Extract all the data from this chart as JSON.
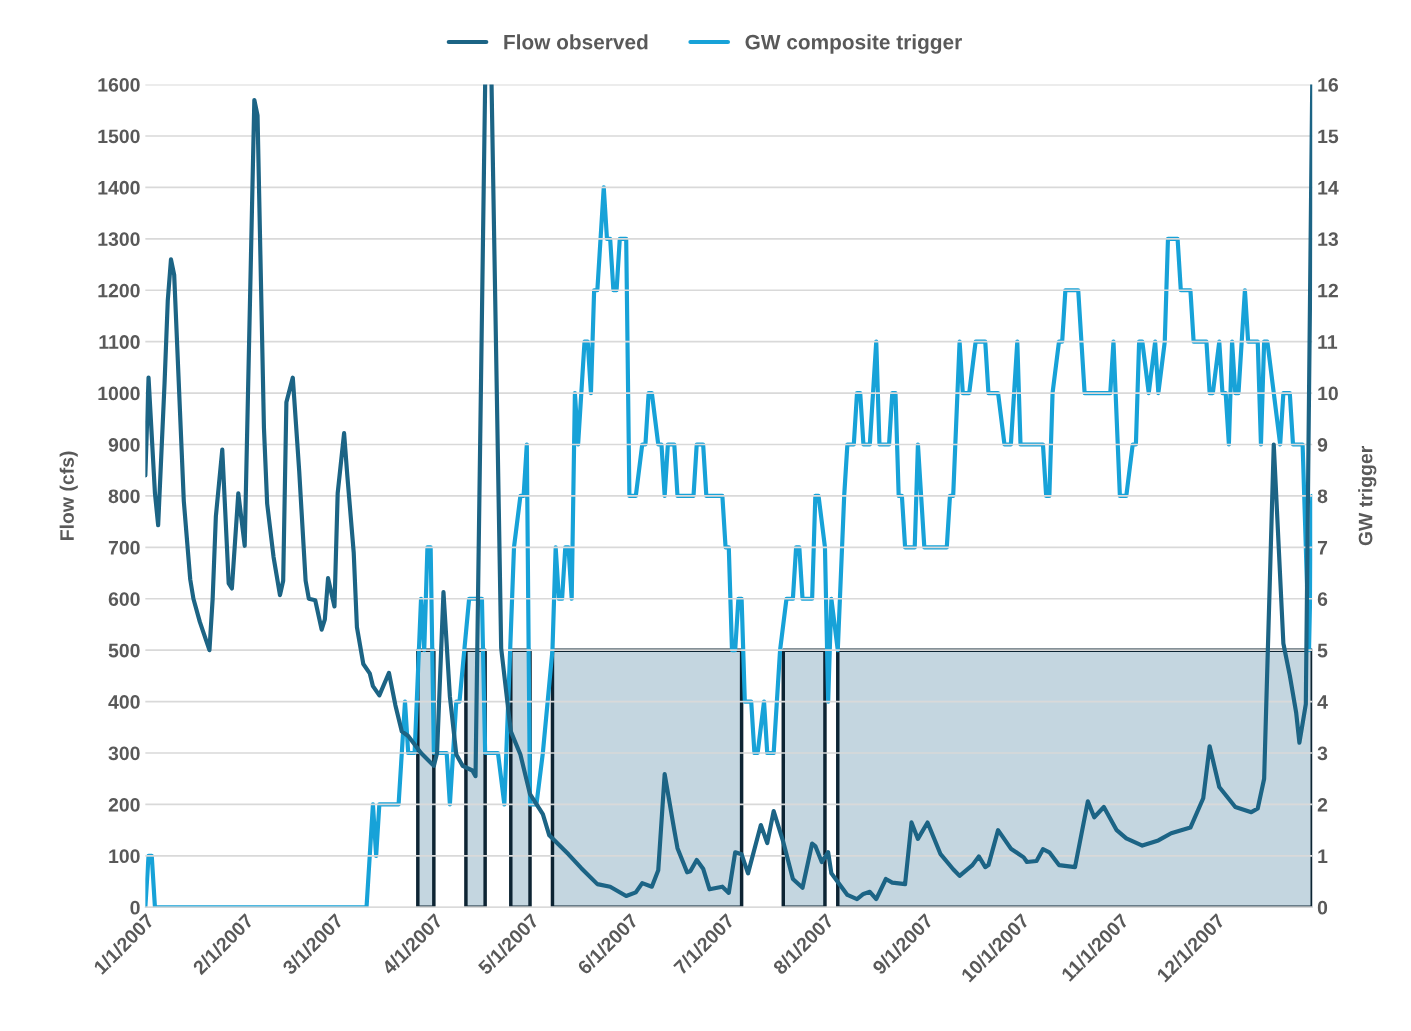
{
  "chart_data": {
    "type": "line",
    "ylabel": "Flow (cfs)",
    "y2label": "GW trigger",
    "xlim": [
      "2007-01-01",
      "2007-12-31"
    ],
    "xticks": [
      {
        "value": "2007-01-01",
        "label": "1/1/2007"
      },
      {
        "value": "2007-02-01",
        "label": "2/1/2007"
      },
      {
        "value": "2007-03-01",
        "label": "3/1/2007"
      },
      {
        "value": "2007-04-01",
        "label": "4/1/2007"
      },
      {
        "value": "2007-05-01",
        "label": "5/1/2007"
      },
      {
        "value": "2007-06-01",
        "label": "6/1/2007"
      },
      {
        "value": "2007-07-01",
        "label": "7/1/2007"
      },
      {
        "value": "2007-08-01",
        "label": "8/1/2007"
      },
      {
        "value": "2007-09-01",
        "label": "9/1/2007"
      },
      {
        "value": "2007-10-01",
        "label": "10/1/2007"
      },
      {
        "value": "2007-11-01",
        "label": "11/1/2007"
      },
      {
        "value": "2007-12-01",
        "label": "12/1/2007"
      }
    ],
    "ylim": [
      0,
      1600
    ],
    "yticks": [
      0,
      100,
      200,
      300,
      400,
      500,
      600,
      700,
      800,
      900,
      1000,
      1100,
      1200,
      1300,
      1400,
      1500,
      1600
    ],
    "y2lim": [
      0,
      16
    ],
    "y2ticks": [
      0,
      1,
      2,
      3,
      4,
      5,
      6,
      7,
      8,
      9,
      10,
      11,
      12,
      13,
      14,
      15,
      16
    ],
    "grid": "y",
    "legend": "top",
    "series": [
      {
        "type": "area",
        "axis": "y2",
        "color": "#c4d6e0",
        "x": [
          "2007-03-27",
          "2007-04-01",
          "2007-04-06",
          "2007-04-11",
          "2007-04-17",
          "2007-04-21",
          "2007-04-25",
          "2007-05-01",
          "2007-05-04",
          "2007-05-08",
          "2007-07-06",
          "2007-07-12",
          "2007-07-19",
          "2007-08-01",
          "2007-08-03",
          "2007-08-05",
          "2007-12-31"
        ],
        "values": [
          5,
          5,
          null,
          5,
          5,
          null,
          5,
          5,
          null,
          5,
          5,
          null,
          5,
          5,
          null,
          5,
          5
        ]
      },
      {
        "axis": "y2",
        "name": "GW composite trigger",
        "color": "#17a2d8",
        "x": [
          "2007-01-01",
          "2007-01-02",
          "2007-01-03",
          "2007-01-04",
          "2007-03-11",
          "2007-03-13",
          "2007-03-14",
          "2007-03-15",
          "2007-03-21",
          "2007-03-23",
          "2007-03-24",
          "2007-03-26",
          "2007-03-28",
          "2007-03-29",
          "2007-03-30",
          "2007-03-31",
          "2007-04-01",
          "2007-04-05",
          "2007-04-06",
          "2007-04-08",
          "2007-04-09",
          "2007-04-12",
          "2007-04-16",
          "2007-04-17",
          "2007-04-21",
          "2007-04-23",
          "2007-04-26",
          "2007-04-28",
          "2007-04-29",
          "2007-04-30",
          "2007-05-01",
          "2007-05-03",
          "2007-05-05",
          "2007-05-08",
          "2007-05-09",
          "2007-05-10",
          "2007-05-11",
          "2007-05-12",
          "2007-05-13",
          "2007-05-14",
          "2007-05-15",
          "2007-05-16",
          "2007-05-18",
          "2007-05-19",
          "2007-05-20",
          "2007-05-21",
          "2007-05-22",
          "2007-05-24",
          "2007-05-25",
          "2007-05-26",
          "2007-05-27",
          "2007-05-28",
          "2007-05-29",
          "2007-05-31",
          "2007-06-01",
          "2007-06-03",
          "2007-06-05",
          "2007-06-06",
          "2007-06-07",
          "2007-06-08",
          "2007-06-10",
          "2007-06-11",
          "2007-06-12",
          "2007-06-13",
          "2007-06-15",
          "2007-06-16",
          "2007-06-21",
          "2007-06-22",
          "2007-06-24",
          "2007-06-25",
          "2007-06-30",
          "2007-07-01",
          "2007-07-02",
          "2007-07-03",
          "2007-07-04",
          "2007-07-05",
          "2007-07-06",
          "2007-07-07",
          "2007-07-09",
          "2007-07-10",
          "2007-07-11",
          "2007-07-13",
          "2007-07-14",
          "2007-07-16",
          "2007-07-18",
          "2007-07-20",
          "2007-07-22",
          "2007-07-23",
          "2007-07-24",
          "2007-07-25",
          "2007-07-28",
          "2007-07-29",
          "2007-07-30",
          "2007-08-01",
          "2007-08-02",
          "2007-08-03",
          "2007-08-05",
          "2007-08-07",
          "2007-08-08",
          "2007-08-10",
          "2007-08-11",
          "2007-08-12",
          "2007-08-13",
          "2007-08-15",
          "2007-08-17",
          "2007-08-18",
          "2007-08-21",
          "2007-08-22",
          "2007-08-23",
          "2007-08-24",
          "2007-08-25",
          "2007-08-26",
          "2007-08-29",
          "2007-08-30",
          "2007-09-01",
          "2007-09-08",
          "2007-09-09",
          "2007-09-10",
          "2007-09-12",
          "2007-09-13",
          "2007-09-15",
          "2007-09-17",
          "2007-09-20",
          "2007-09-21",
          "2007-09-24",
          "2007-09-26",
          "2007-09-28",
          "2007-09-30",
          "2007-10-01",
          "2007-10-08",
          "2007-10-09",
          "2007-10-10",
          "2007-10-11",
          "2007-10-13",
          "2007-10-14",
          "2007-10-15",
          "2007-10-19",
          "2007-10-21",
          "2007-10-29",
          "2007-10-30",
          "2007-11-01",
          "2007-11-03",
          "2007-11-05",
          "2007-11-06",
          "2007-11-07",
          "2007-11-08",
          "2007-11-10",
          "2007-11-12",
          "2007-11-13",
          "2007-11-15",
          "2007-11-16",
          "2007-11-19",
          "2007-11-20",
          "2007-11-23",
          "2007-11-24",
          "2007-11-28",
          "2007-11-29",
          "2007-11-30",
          "2007-12-02",
          "2007-12-03",
          "2007-12-04",
          "2007-12-05",
          "2007-12-06",
          "2007-12-07",
          "2007-12-08",
          "2007-12-10",
          "2007-12-11",
          "2007-12-14",
          "2007-12-15",
          "2007-12-16",
          "2007-12-17",
          "2007-12-19",
          "2007-12-21",
          "2007-12-22",
          "2007-12-24",
          "2007-12-25",
          "2007-12-28",
          "2007-12-30",
          "2007-12-31"
        ],
        "values": [
          0,
          1,
          1,
          0,
          0,
          2,
          1,
          2,
          2,
          4,
          3,
          3,
          6,
          5,
          7,
          7,
          3,
          3,
          2,
          4,
          4,
          6,
          6,
          3,
          3,
          2,
          7,
          8,
          8,
          9,
          2,
          2,
          3,
          5,
          7,
          6,
          6,
          7,
          7,
          6,
          10,
          9,
          11,
          11,
          10,
          12,
          12,
          14,
          13,
          13,
          12,
          12,
          13,
          13,
          8,
          8,
          9,
          9,
          10,
          10,
          9,
          9,
          8,
          9,
          9,
          8,
          8,
          9,
          9,
          8,
          8,
          7,
          7,
          5,
          5,
          6,
          6,
          4,
          4,
          3,
          3,
          4,
          3,
          3,
          5,
          6,
          6,
          7,
          7,
          6,
          6,
          8,
          8,
          7,
          4,
          6,
          5,
          8,
          9,
          9,
          10,
          10,
          9,
          9,
          11,
          9,
          9,
          10,
          10,
          8,
          8,
          7,
          7,
          9,
          7,
          7,
          8,
          8,
          11,
          10,
          10,
          11,
          11,
          10,
          10,
          9,
          9,
          11,
          9,
          9,
          8,
          8,
          10,
          11,
          11,
          12,
          12,
          10,
          10,
          11,
          8,
          8,
          9,
          9,
          11,
          11,
          10,
          11,
          10,
          11,
          13,
          13,
          12,
          12,
          11,
          11,
          10,
          10,
          11,
          10,
          10,
          9,
          11,
          10,
          10,
          12,
          11,
          11,
          9,
          11,
          11,
          10,
          9,
          10,
          10,
          9,
          9,
          5,
          8
        ]
      },
      {
        "name": "Flow observed",
        "color": "#1c6485",
        "x": [
          "2007-01-01",
          "2007-01-02",
          "2007-01-04",
          "2007-01-05",
          "2007-01-07",
          "2007-01-08",
          "2007-01-09",
          "2007-01-10",
          "2007-01-13",
          "2007-01-15",
          "2007-01-16",
          "2007-01-18",
          "2007-01-21",
          "2007-01-22",
          "2007-01-23",
          "2007-01-25",
          "2007-01-27",
          "2007-01-28",
          "2007-01-30",
          "2007-02-01",
          "2007-02-04",
          "2007-02-05",
          "2007-02-07",
          "2007-02-08",
          "2007-02-10",
          "2007-02-12",
          "2007-02-13",
          "2007-02-14",
          "2007-02-16",
          "2007-02-18",
          "2007-02-20",
          "2007-02-21",
          "2007-02-23",
          "2007-02-25",
          "2007-02-26",
          "2007-02-27",
          "2007-03-01",
          "2007-03-02",
          "2007-03-04",
          "2007-03-05",
          "2007-03-07",
          "2007-03-08",
          "2007-03-10",
          "2007-03-12",
          "2007-03-13",
          "2007-03-15",
          "2007-03-18",
          "2007-03-20",
          "2007-03-22",
          "2007-03-24",
          "2007-03-28",
          "2007-04-01",
          "2007-04-02",
          "2007-04-04",
          "2007-04-06",
          "2007-04-08",
          "2007-04-10",
          "2007-04-13",
          "2007-04-14",
          "2007-04-17",
          "2007-04-18",
          "2007-04-19",
          "2007-04-22",
          "2007-04-25",
          "2007-04-28",
          "2007-05-01",
          "2007-05-05",
          "2007-05-07",
          "2007-05-13",
          "2007-05-17",
          "2007-05-22",
          "2007-05-26",
          "2007-05-31",
          "2007-06-03",
          "2007-06-05",
          "2007-06-08",
          "2007-06-10",
          "2007-06-12",
          "2007-06-15",
          "2007-06-16",
          "2007-06-19",
          "2007-06-20",
          "2007-06-22",
          "2007-06-24",
          "2007-06-26",
          "2007-06-30",
          "2007-07-02",
          "2007-07-04",
          "2007-07-06",
          "2007-07-08",
          "2007-07-12",
          "2007-07-14",
          "2007-07-16",
          "2007-07-19",
          "2007-07-22",
          "2007-07-25",
          "2007-07-28",
          "2007-07-29",
          "2007-07-31",
          "2007-08-02",
          "2007-08-03",
          "2007-08-08",
          "2007-08-11",
          "2007-08-13",
          "2007-08-15",
          "2007-08-17",
          "2007-08-20",
          "2007-08-22",
          "2007-08-26",
          "2007-08-28",
          "2007-08-30",
          "2007-09-02",
          "2007-09-06",
          "2007-09-10",
          "2007-09-12",
          "2007-09-16",
          "2007-09-18",
          "2007-09-20",
          "2007-09-21",
          "2007-09-24",
          "2007-09-28",
          "2007-10-02",
          "2007-10-03",
          "2007-10-06",
          "2007-10-08",
          "2007-10-10",
          "2007-10-13",
          "2007-10-18",
          "2007-10-22",
          "2007-10-24",
          "2007-10-27",
          "2007-10-31",
          "2007-11-03",
          "2007-11-08",
          "2007-11-13",
          "2007-11-17",
          "2007-11-23",
          "2007-11-27",
          "2007-11-29",
          "2007-12-02",
          "2007-12-07",
          "2007-12-12",
          "2007-12-14",
          "2007-12-16",
          "2007-12-19",
          "2007-12-22",
          "2007-12-24",
          "2007-12-26",
          "2007-12-27",
          "2007-12-29",
          "2007-12-31"
        ],
        "values": [
          840,
          1030,
          805,
          743,
          1020,
          1180,
          1260,
          1230,
          790,
          638,
          600,
          555,
          500,
          600,
          760,
          890,
          630,
          620,
          805,
          703,
          1570,
          1540,
          932,
          785,
          681,
          607,
          635,
          982,
          1030,
          848,
          635,
          600,
          597,
          540,
          560,
          640,
          585,
          805,
          922,
          840,
          690,
          545,
          473,
          455,
          430,
          412,
          456,
          393,
          342,
          333,
          300,
          275,
          300,
          613,
          410,
          297,
          275,
          266,
          255,
          1600,
          null,
          1600,
          504,
          342,
          297,
          220,
          181,
          140,
          103,
          76,
          45,
          40,
          22,
          29,
          47,
          40,
          72,
          259,
          150,
          115,
          68,
          70,
          92,
          75,
          35,
          40,
          28,
          107,
          103,
          66,
          160,
          125,
          187,
          127,
          55,
          38,
          124,
          119,
          88,
          107,
          66,
          24,
          16,
          26,
          30,
          16,
          55,
          48,
          45,
          165,
          133,
          165,
          104,
          74,
          61,
          82,
          99,
          78,
          82,
          150,
          114,
          97,
          88,
          90,
          113,
          107,
          82,
          78,
          206,
          175,
          195,
          150,
          134,
          120,
          130,
          144,
          155,
          212,
          313,
          234,
          195,
          185,
          192,
          250,
          900,
          513,
          451,
          378,
          320,
          395,
          1600
        ]
      }
    ]
  }
}
